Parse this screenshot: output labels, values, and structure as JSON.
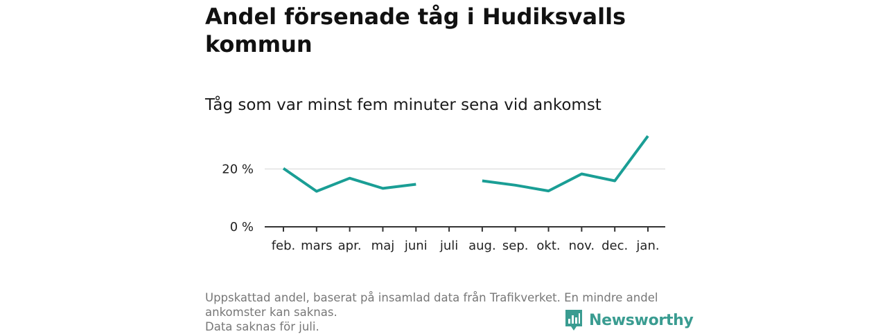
{
  "header": {
    "title": "Andel försenade tåg i Hudiksvalls kommun",
    "subtitle": "Tåg som var minst fem minuter sena vid ankomst"
  },
  "chart_data": {
    "type": "line",
    "title": "Andel försenade tåg i Hudiksvalls kommun",
    "subtitle": "Tåg som var minst fem minuter sena vid ankomst",
    "xlabel": "",
    "ylabel": "",
    "categories": [
      "feb.",
      "mars",
      "apr.",
      "maj",
      "juni",
      "juli",
      "aug.",
      "sep.",
      "okt.",
      "nov.",
      "dec.",
      "jan."
    ],
    "series": [
      {
        "values": [
          20.2,
          12.3,
          16.8,
          13.3,
          14.7,
          null,
          15.9,
          14.4,
          12.4,
          18.3,
          15.9,
          31.4
        ]
      }
    ],
    "yticks": [
      {
        "value": 0,
        "label": "0 %"
      },
      {
        "value": 20,
        "label": "20 %"
      }
    ],
    "ylim": [
      0,
      33
    ],
    "grid": true,
    "line_color": "#1a9e95",
    "grid_color": "#dddddd",
    "axis_color": "#333333"
  },
  "footer": {
    "note1": "Uppskattad andel, baserat på insamlad data från Trafikverket. En mindre andel ankomster kan saknas.",
    "note2": "Data saknas för juli."
  },
  "brand": {
    "name": "Newsworthy",
    "icon": "newsworthy-logo-icon",
    "color": "#3a9c91"
  }
}
